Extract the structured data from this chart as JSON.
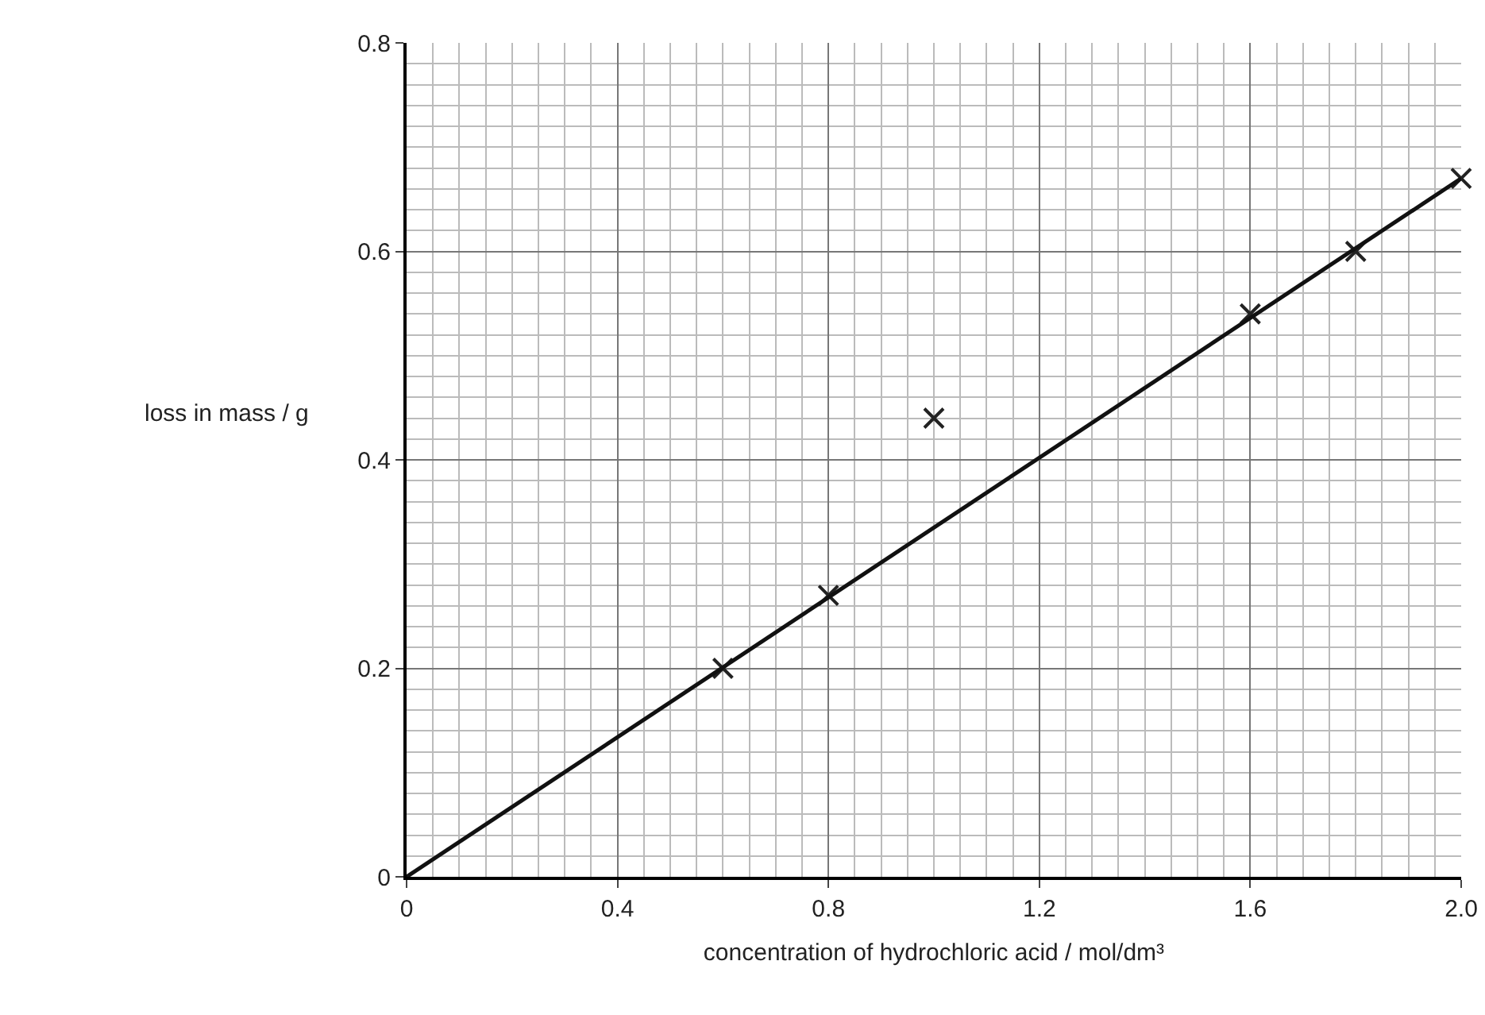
{
  "chart_data": {
    "type": "scatter",
    "xlabel": "concentration of hydrochloric acid / mol/dm³",
    "ylabel": "loss in mass / g",
    "series": [
      {
        "x": [
          0.6,
          0.8,
          1.0,
          1.6,
          1.8,
          2.0
        ],
        "values": [
          0.2,
          0.27,
          0.44,
          0.54,
          0.6,
          0.67
        ],
        "color": "#222222",
        "marker": "cross"
      },
      {
        "type": "line",
        "x": [
          0,
          2.0
        ],
        "values": [
          0,
          0.67
        ],
        "color": "#111111",
        "line_style": "solid",
        "marker": "none"
      }
    ],
    "xlim": [
      0,
      2.0
    ],
    "ylim": [
      0,
      0.8
    ],
    "xticks": [
      0,
      0.4,
      0.8,
      1.2,
      1.6,
      {
        "value": 2,
        "label": "2.0"
      }
    ],
    "yticks": [
      0,
      0.2,
      0.4,
      0.6,
      0.8
    ],
    "grid": true
  }
}
